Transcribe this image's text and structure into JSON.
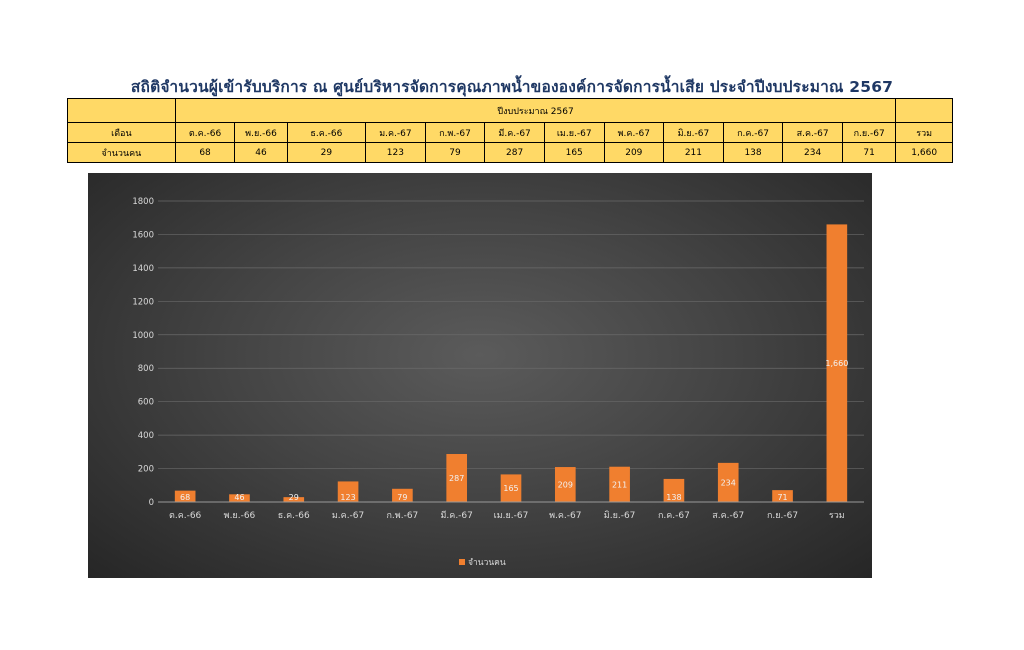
{
  "page_title": "สถิติจำนวนผู้เข้ารับบริการ ณ ศูนย์บริหารจัดการคุณภาพน้ำขององค์การจัดการน้ำเสีย ประจำปีงบประมาณ 2567",
  "table": {
    "group_header": "ปีงบประมาณ 2567",
    "month_header": "เดือน",
    "row_label": "จำนวนคน",
    "months": [
      "ต.ค.-66",
      "พ.ย.-66",
      "ธ.ค.-66",
      "ม.ค.-67",
      "ก.พ.-67",
      "มี.ค.-67",
      "เม.ย.-67",
      "พ.ค.-67",
      "มิ.ย.-67",
      "ก.ค.-67",
      "ส.ค.-67",
      "ก.ย.-67",
      "รวม"
    ],
    "values": [
      "68",
      "46",
      "29",
      "123",
      "79",
      "287",
      "165",
      "209",
      "211",
      "138",
      "234",
      "71",
      "1,660"
    ]
  },
  "chart_data": {
    "type": "bar",
    "categories": [
      "ต.ค.-66",
      "พ.ย.-66",
      "ธ.ค.-66",
      "ม.ค.-67",
      "ก.พ.-67",
      "มี.ค.-67",
      "เม.ย.-67",
      "พ.ค.-67",
      "มิ.ย.-67",
      "ก.ค.-67",
      "ส.ค.-67",
      "ก.ย.-67",
      "รวม"
    ],
    "series": [
      {
        "name": "จำนวนคน",
        "values": [
          68,
          46,
          29,
          123,
          79,
          287,
          165,
          209,
          211,
          138,
          234,
          71,
          1660
        ]
      }
    ],
    "data_labels": [
      "68",
      "46",
      "29",
      "123",
      "79",
      "287",
      "165",
      "209",
      "211",
      "138",
      "234",
      "71",
      "1,660"
    ],
    "yticks": [
      "0",
      "200",
      "400",
      "600",
      "800",
      "1000",
      "1200",
      "1400",
      "1600",
      "1800"
    ],
    "ylim": [
      0,
      1800
    ],
    "grid": true,
    "legend_position": "bottom",
    "bar_color": "#f07f2f",
    "background_color": "#404040"
  }
}
